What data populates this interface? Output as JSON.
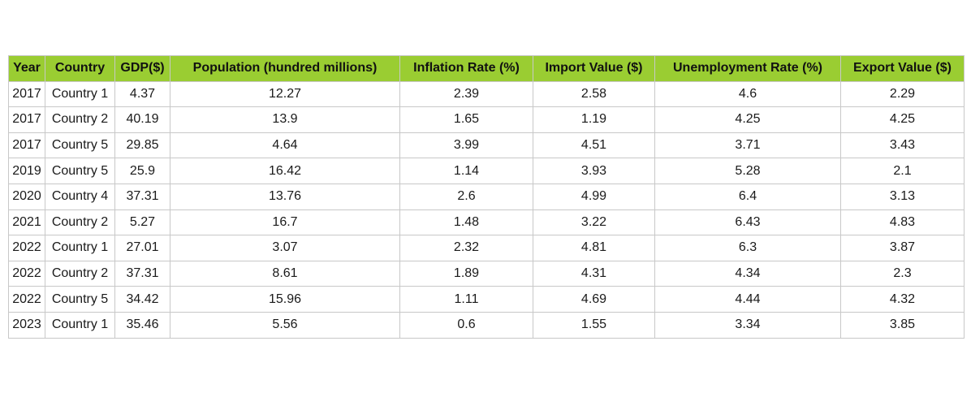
{
  "chart_data": {
    "type": "table",
    "columns": [
      "Year",
      "Country",
      "GDP($)",
      "Population (hundred millions)",
      "Inflation Rate (%)",
      "Import Value ($)",
      "Unemployment Rate (%)",
      "Export Value ($)"
    ],
    "rows": [
      [
        "2017",
        "Country 1",
        "4.37",
        "12.27",
        "2.39",
        "2.58",
        "4.6",
        "2.29"
      ],
      [
        "2017",
        "Country 2",
        "40.19",
        "13.9",
        "1.65",
        "1.19",
        "4.25",
        "4.25"
      ],
      [
        "2017",
        "Country 5",
        "29.85",
        "4.64",
        "3.99",
        "4.51",
        "3.71",
        "3.43"
      ],
      [
        "2019",
        "Country 5",
        "25.9",
        "16.42",
        "1.14",
        "3.93",
        "5.28",
        "2.1"
      ],
      [
        "2020",
        "Country 4",
        "37.31",
        "13.76",
        "2.6",
        "4.99",
        "6.4",
        "3.13"
      ],
      [
        "2021",
        "Country 2",
        "5.27",
        "16.7",
        "1.48",
        "3.22",
        "6.43",
        "4.83"
      ],
      [
        "2022",
        "Country 1",
        "27.01",
        "3.07",
        "2.32",
        "4.81",
        "6.3",
        "3.87"
      ],
      [
        "2022",
        "Country 2",
        "37.31",
        "8.61",
        "1.89",
        "4.31",
        "4.34",
        "2.3"
      ],
      [
        "2022",
        "Country 5",
        "34.42",
        "15.96",
        "1.11",
        "4.69",
        "4.44",
        "4.32"
      ],
      [
        "2023",
        "Country 1",
        "35.46",
        "5.56",
        "0.6",
        "1.55",
        "3.34",
        "3.85"
      ]
    ],
    "header_color": "#9acd32",
    "border_color": "#c8c8c8"
  }
}
